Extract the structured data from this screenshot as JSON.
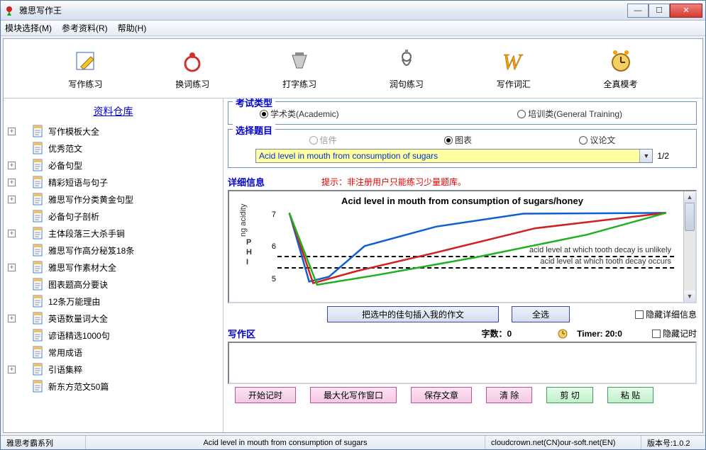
{
  "window": {
    "title": "雅思写作王"
  },
  "menu": {
    "module": "模块选择(M)",
    "reference": "参考资料(R)",
    "help": "帮助(H)"
  },
  "toolbar": [
    {
      "key": "writing",
      "label": "写作练习",
      "color": "#f4c430"
    },
    {
      "key": "changeword",
      "label": "换词练习",
      "color": "#d03030"
    },
    {
      "key": "typing",
      "label": "打字练习",
      "color": "#888888"
    },
    {
      "key": "polish",
      "label": "润句练习",
      "color": "#888888"
    },
    {
      "key": "vocab",
      "label": "写作词汇",
      "color": "#f4a000"
    },
    {
      "key": "mock",
      "label": "全真模考",
      "color": "#f4a000"
    }
  ],
  "left": {
    "title": "资料仓库",
    "items": [
      {
        "label": "写作模板大全",
        "expand": true
      },
      {
        "label": "优秀范文",
        "expand": false
      },
      {
        "label": "必备句型",
        "expand": true
      },
      {
        "label": "精彩短语与句子",
        "expand": true
      },
      {
        "label": "雅思写作分类黄金句型",
        "expand": true
      },
      {
        "label": "必备句子剖析",
        "expand": false
      },
      {
        "label": "主体段落三大杀手锏",
        "expand": true
      },
      {
        "label": "雅思写作高分秘笈18条",
        "expand": false
      },
      {
        "label": "雅思写作素材大全",
        "expand": true
      },
      {
        "label": "图表题高分要诀",
        "expand": false
      },
      {
        "label": "12条万能理由",
        "expand": false
      },
      {
        "label": "英语数量词大全",
        "expand": true
      },
      {
        "label": "谚语精选1000句",
        "expand": false
      },
      {
        "label": "常用成语",
        "expand": false
      },
      {
        "label": "引语集粹",
        "expand": true
      },
      {
        "label": "新东方范文50篇",
        "expand": false
      }
    ]
  },
  "exam": {
    "legend": "考试类型",
    "academic": "学术类(Academic)",
    "general": "培训类(General Training)",
    "selected": "academic"
  },
  "topic": {
    "legend": "选择题目",
    "letter": "信件",
    "chart": "图表",
    "essay": "议论文",
    "selected_item": "Acid level in mouth from consumption of sugars",
    "page": "1/2"
  },
  "detail": {
    "title": "详细信息",
    "hint": "提示：非注册用户只能练习少量题库。",
    "btn_insert": "把选中的佳句插入我的作文",
    "btn_select_all": "全选",
    "chk_hide": "隐藏详细信息"
  },
  "chart": {
    "title": "Acid level in mouth from consumption of sugars/honey",
    "y_ticks": [
      7,
      6,
      5
    ],
    "y_tick_pos": [
      0.05,
      0.45,
      0.85
    ],
    "y_axis_label": "ng acidity",
    "ph_label": "P\nH\nI",
    "dash1_y": 0.56,
    "dash1_label": "acid level at which tooth decay is unlikely",
    "dash2_y": 0.7,
    "dash2_label": "acid level at which tooth decay occurs",
    "series": [
      {
        "color": "#1060d0",
        "points": [
          [
            0.03,
            0.03
          ],
          [
            0.08,
            0.88
          ],
          [
            0.13,
            0.82
          ],
          [
            0.22,
            0.44
          ],
          [
            0.4,
            0.2
          ],
          [
            0.62,
            0.04
          ],
          [
            0.98,
            0.03
          ]
        ]
      },
      {
        "color": "#d02020",
        "points": [
          [
            0.03,
            0.03
          ],
          [
            0.09,
            0.9
          ],
          [
            0.2,
            0.75
          ],
          [
            0.4,
            0.52
          ],
          [
            0.65,
            0.22
          ],
          [
            0.98,
            0.03
          ]
        ]
      },
      {
        "color": "#20b020",
        "points": [
          [
            0.03,
            0.03
          ],
          [
            0.1,
            0.92
          ],
          [
            0.25,
            0.8
          ],
          [
            0.5,
            0.58
          ],
          [
            0.78,
            0.3
          ],
          [
            0.98,
            0.03
          ]
        ]
      }
    ]
  },
  "write": {
    "title": "写作区",
    "wordcount_label": "字数：",
    "wordcount": "0",
    "timer_label": "Timer: 20:0",
    "chk_hide_timer": "隐藏记时"
  },
  "buttons": {
    "start_timer": "开始记时",
    "maximize": "最大化写作窗口",
    "save": "保存文章",
    "clear": "清 除",
    "cut": "剪 切",
    "paste": "粘 贴"
  },
  "status": {
    "left": "雅思考霸系列",
    "mid": "Acid level in mouth from consumption of sugars",
    "right1": "cloudcrown.net(CN)our-soft.net(EN)",
    "right2": "版本号:1.0.2"
  }
}
